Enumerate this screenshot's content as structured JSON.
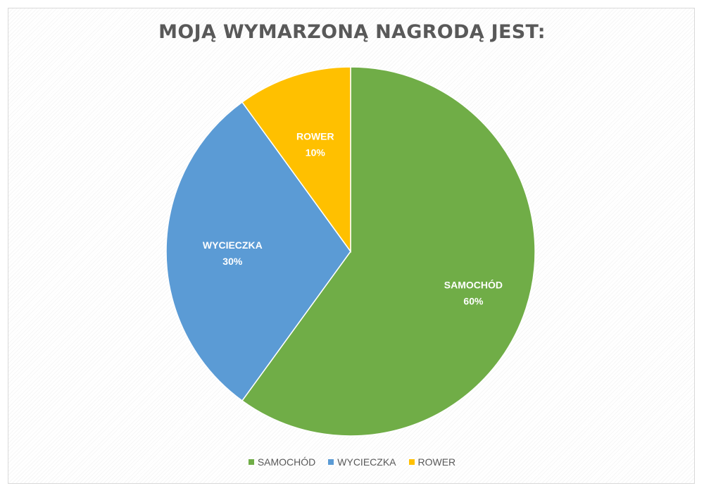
{
  "chart_data": {
    "type": "pie",
    "title": "MOJĄ WYMARZONĄ NAGRODĄ JEST:",
    "categories": [
      "SAMOCHÓD",
      "WYCIECZKA",
      "ROWER"
    ],
    "values": [
      60,
      30,
      10
    ],
    "value_labels": [
      "60%",
      "30%",
      "10%"
    ],
    "colors": [
      "#70ad47",
      "#5b9bd5",
      "#ffc000"
    ],
    "start": "12 o'clock",
    "direction": "clockwise",
    "legend": "bottom"
  }
}
